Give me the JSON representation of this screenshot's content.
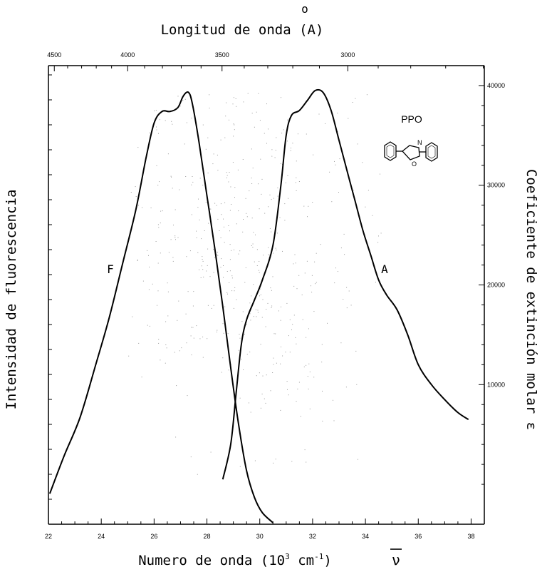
{
  "chart_data": {
    "type": "line",
    "title": "",
    "top_axis": {
      "label": "Longitud de onda (A)",
      "label_mark": "o",
      "ticks": [
        4500,
        4000,
        3500,
        3000
      ]
    },
    "xlabel": "Numero de onda (10",
    "xlabel_exp1": "3",
    "xlabel_mid": " cm",
    "xlabel_exp2": "-1",
    "xlabel_end": ")",
    "xlabel_symbol": "ν",
    "ylabel_left": "Intensidad de fluorescencia",
    "ylabel_right": "Coeficiente de extinción molar ε",
    "xlim": [
      22,
      38.5
    ],
    "x_ticks": [
      22,
      24,
      26,
      28,
      30,
      32,
      34,
      36,
      38
    ],
    "right_ticks": [
      10000,
      20000,
      30000,
      40000
    ],
    "right_ylim": [
      -4000,
      42000
    ],
    "compound_label": "PPO",
    "structure_atom_labels": [
      "N",
      "O"
    ],
    "series": [
      {
        "name": "F",
        "axis": "left",
        "x": [
          22.05,
          22.6,
          23.2,
          23.8,
          24.3,
          24.8,
          25.3,
          25.7,
          26.0,
          26.3,
          26.6,
          26.9,
          27.1,
          27.3,
          27.45,
          27.7,
          28.0,
          28.3,
          28.6,
          28.9,
          29.2,
          29.5,
          29.8,
          30.1,
          30.5
        ],
        "y": [
          4000,
          9000,
          14000,
          21000,
          27000,
          34000,
          41000,
          48000,
          52500,
          54000,
          54000,
          54500,
          56000,
          56500,
          55000,
          50000,
          43000,
          36000,
          28500,
          20500,
          13000,
          7000,
          3500,
          1500,
          200
        ]
      },
      {
        "name": "A",
        "axis": "right",
        "x": [
          28.6,
          28.9,
          29.1,
          29.3,
          29.5,
          29.8,
          30.1,
          30.5,
          30.8,
          31.0,
          31.2,
          31.5,
          31.8,
          32.1,
          32.4,
          32.7,
          33.0,
          33.3,
          33.6,
          33.9,
          34.2,
          34.5,
          34.8,
          35.2,
          35.6,
          36.0,
          36.5,
          37.0,
          37.5,
          37.9
        ],
        "y": [
          500,
          4000,
          9000,
          14000,
          16500,
          18500,
          20500,
          24000,
          30000,
          35000,
          37000,
          37500,
          38500,
          39500,
          39300,
          37500,
          34500,
          31500,
          28500,
          25500,
          23000,
          20500,
          19000,
          17500,
          15000,
          12000,
          10000,
          8500,
          7200,
          6500
        ]
      }
    ],
    "grid": false,
    "legend": "none"
  }
}
